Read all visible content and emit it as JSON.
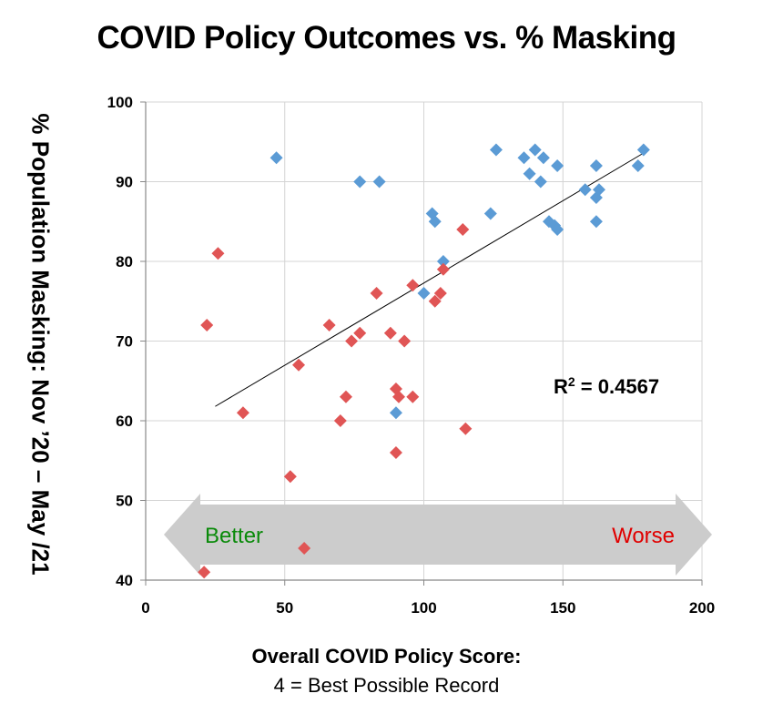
{
  "chart_data": {
    "type": "scatter",
    "title": "COVID Policy Outcomes vs. % Masking",
    "xlabel": "Overall COVID Policy Score:",
    "xlabel_sub": "4 = Best Possible Record",
    "ylabel": "% Population Masking: Nov ’20 – May /21",
    "xlim": [
      0,
      200
    ],
    "ylim": [
      40,
      100
    ],
    "x_ticks": [
      0,
      50,
      100,
      150,
      200
    ],
    "y_ticks": [
      40,
      50,
      60,
      70,
      80,
      90,
      100
    ],
    "grid": true,
    "series": [
      {
        "name": "blue",
        "color": "#5b9bd5",
        "points": [
          [
            47,
            93
          ],
          [
            77,
            90
          ],
          [
            84,
            90
          ],
          [
            90,
            61
          ],
          [
            100,
            76
          ],
          [
            103,
            86
          ],
          [
            104,
            85
          ],
          [
            107,
            80
          ],
          [
            124,
            86
          ],
          [
            126,
            94
          ],
          [
            136,
            93
          ],
          [
            138,
            91
          ],
          [
            140,
            94
          ],
          [
            142,
            90
          ],
          [
            143,
            93
          ],
          [
            145,
            85
          ],
          [
            147,
            84.5
          ],
          [
            148,
            84
          ],
          [
            148,
            92
          ],
          [
            158,
            89
          ],
          [
            162,
            92
          ],
          [
            162,
            88
          ],
          [
            162,
            85
          ],
          [
            163,
            89
          ],
          [
            177,
            92
          ],
          [
            179,
            94
          ]
        ]
      },
      {
        "name": "red",
        "color": "#e05555",
        "points": [
          [
            21,
            41
          ],
          [
            22,
            72
          ],
          [
            26,
            81
          ],
          [
            35,
            61
          ],
          [
            52,
            53
          ],
          [
            55,
            67
          ],
          [
            57,
            44
          ],
          [
            66,
            72
          ],
          [
            70,
            60
          ],
          [
            72,
            63
          ],
          [
            74,
            70
          ],
          [
            77,
            71
          ],
          [
            83,
            76
          ],
          [
            88,
            71
          ],
          [
            90,
            56
          ],
          [
            90,
            64
          ],
          [
            91,
            63
          ],
          [
            93,
            70
          ],
          [
            96,
            77
          ],
          [
            96,
            63
          ],
          [
            104,
            75
          ],
          [
            106,
            76
          ],
          [
            107,
            79
          ],
          [
            114,
            84
          ],
          [
            115,
            59
          ]
        ]
      }
    ],
    "trendline": {
      "x": [
        25,
        180
      ],
      "y": [
        61.8,
        93.8
      ]
    },
    "annotation": {
      "text_prefix": "R",
      "text_sup": "2",
      "text_rest": " = 0.4567"
    },
    "arrow": {
      "left_label": "Better",
      "right_label": "Worse",
      "left_color": "#0a8a0a",
      "right_color": "#e00000",
      "fill": "#cccccc"
    }
  }
}
